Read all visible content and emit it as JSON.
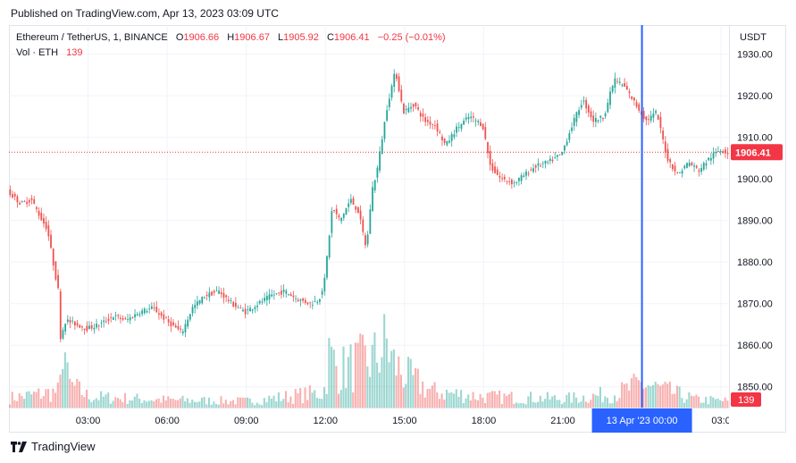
{
  "published": "Published on TradingView.com, Apr 13, 2023 03:09 UTC",
  "legend": {
    "symbol": "Ethereum / TetherUS, 1, BINANCE",
    "o_label": "O",
    "o_value": "1906.66",
    "h_label": "H",
    "h_value": "1906.67",
    "l_label": "L",
    "l_value": "1905.92",
    "c_label": "C",
    "c_value": "1906.41",
    "change": "−0.25 (−0.01%)",
    "vol_label": "Vol · ETH",
    "vol_value": "139"
  },
  "unit_label": "USDT",
  "footer": {
    "brand": "TradingView",
    "logo_icon": "tradingview-logo-icon"
  },
  "colors": {
    "up": "#26a69a",
    "down": "#ef5350",
    "accent": "#2962ff",
    "price_tag": "#f23645"
  },
  "chart_data": {
    "type": "candlestick",
    "title": "Ethereum / TetherUS, 1, BINANCE",
    "ylabel": "USDT",
    "ylim": [
      1845,
      1937
    ],
    "y_ticks": [
      "1930.00",
      "1920.00",
      "1910.00",
      "1900.00",
      "1890.00",
      "1880.00",
      "1870.00",
      "1860.00",
      "1850.00"
    ],
    "y_tick_values": [
      1930,
      1920,
      1910,
      1900,
      1890,
      1880,
      1870,
      1860,
      1850
    ],
    "x_ticks": [
      "03:00",
      "06:00",
      "09:00",
      "12:00",
      "15:00",
      "18:00",
      "21:00",
      "03:0"
    ],
    "x_tick_hours": [
      3,
      6,
      9,
      12,
      15,
      18,
      21,
      27
    ],
    "x_range_hours": [
      0.0,
      27.3
    ],
    "crosshair": {
      "hour": 24.0,
      "label": "13 Apr '23   00:00"
    },
    "last_price": {
      "value": 1906.41,
      "label": "1906.41"
    },
    "last_volume": {
      "value": 139,
      "label": "139"
    },
    "price_path": [
      [
        0.0,
        1897
      ],
      [
        0.5,
        1894
      ],
      [
        0.9,
        1895
      ],
      [
        1.3,
        1890
      ],
      [
        1.5,
        1888
      ],
      [
        1.8,
        1877
      ],
      [
        1.95,
        1872
      ],
      [
        2.0,
        1862
      ],
      [
        2.2,
        1866
      ],
      [
        2.6,
        1865
      ],
      [
        3.0,
        1864
      ],
      [
        3.5,
        1865
      ],
      [
        4.0,
        1867
      ],
      [
        4.5,
        1866
      ],
      [
        5.0,
        1868
      ],
      [
        5.5,
        1869
      ],
      [
        6.0,
        1866
      ],
      [
        6.6,
        1863
      ],
      [
        7.0,
        1869
      ],
      [
        7.5,
        1872
      ],
      [
        8.0,
        1873
      ],
      [
        8.5,
        1870
      ],
      [
        9.0,
        1868
      ],
      [
        9.5,
        1870
      ],
      [
        10.0,
        1872
      ],
      [
        10.5,
        1873
      ],
      [
        11.0,
        1871
      ],
      [
        11.5,
        1870
      ],
      [
        11.8,
        1871
      ],
      [
        12.0,
        1875
      ],
      [
        12.3,
        1893
      ],
      [
        12.6,
        1890
      ],
      [
        13.0,
        1895
      ],
      [
        13.3,
        1892
      ],
      [
        13.6,
        1883
      ],
      [
        13.8,
        1897
      ],
      [
        14.0,
        1902
      ],
      [
        14.4,
        1918
      ],
      [
        14.7,
        1926
      ],
      [
        15.0,
        1916
      ],
      [
        15.4,
        1918
      ],
      [
        15.8,
        1914
      ],
      [
        16.2,
        1913
      ],
      [
        16.6,
        1908
      ],
      [
        17.0,
        1912
      ],
      [
        17.5,
        1915
      ],
      [
        18.0,
        1913
      ],
      [
        18.3,
        1903
      ],
      [
        18.7,
        1900
      ],
      [
        19.2,
        1899
      ],
      [
        19.6,
        1901
      ],
      [
        20.0,
        1903
      ],
      [
        20.5,
        1904
      ],
      [
        21.0,
        1906
      ],
      [
        21.4,
        1913
      ],
      [
        21.8,
        1919
      ],
      [
        22.2,
        1914
      ],
      [
        22.6,
        1915
      ],
      [
        23.0,
        1924
      ],
      [
        23.4,
        1922
      ],
      [
        23.8,
        1918
      ],
      [
        24.2,
        1914
      ],
      [
        24.6,
        1916
      ],
      [
        25.0,
        1905
      ],
      [
        25.4,
        1901
      ],
      [
        25.8,
        1904
      ],
      [
        26.2,
        1902
      ],
      [
        26.6,
        1905
      ],
      [
        27.0,
        1907
      ],
      [
        27.3,
        1906.4
      ]
    ],
    "volume_path": [
      [
        0,
        18
      ],
      [
        1.9,
        30
      ],
      [
        2.0,
        150
      ],
      [
        2.2,
        45
      ],
      [
        3,
        20
      ],
      [
        6,
        14
      ],
      [
        9,
        12
      ],
      [
        11.9,
        28
      ],
      [
        12.1,
        95
      ],
      [
        12.5,
        70
      ],
      [
        13.8,
        90
      ],
      [
        14.3,
        120
      ],
      [
        14.5,
        85
      ],
      [
        15,
        60
      ],
      [
        16,
        30
      ],
      [
        18,
        20
      ],
      [
        20,
        18
      ],
      [
        21,
        16
      ],
      [
        23,
        26
      ],
      [
        24,
        45
      ],
      [
        24.6,
        35
      ],
      [
        26,
        15
      ],
      [
        27.3,
        12
      ]
    ],
    "volume_max": 200
  }
}
